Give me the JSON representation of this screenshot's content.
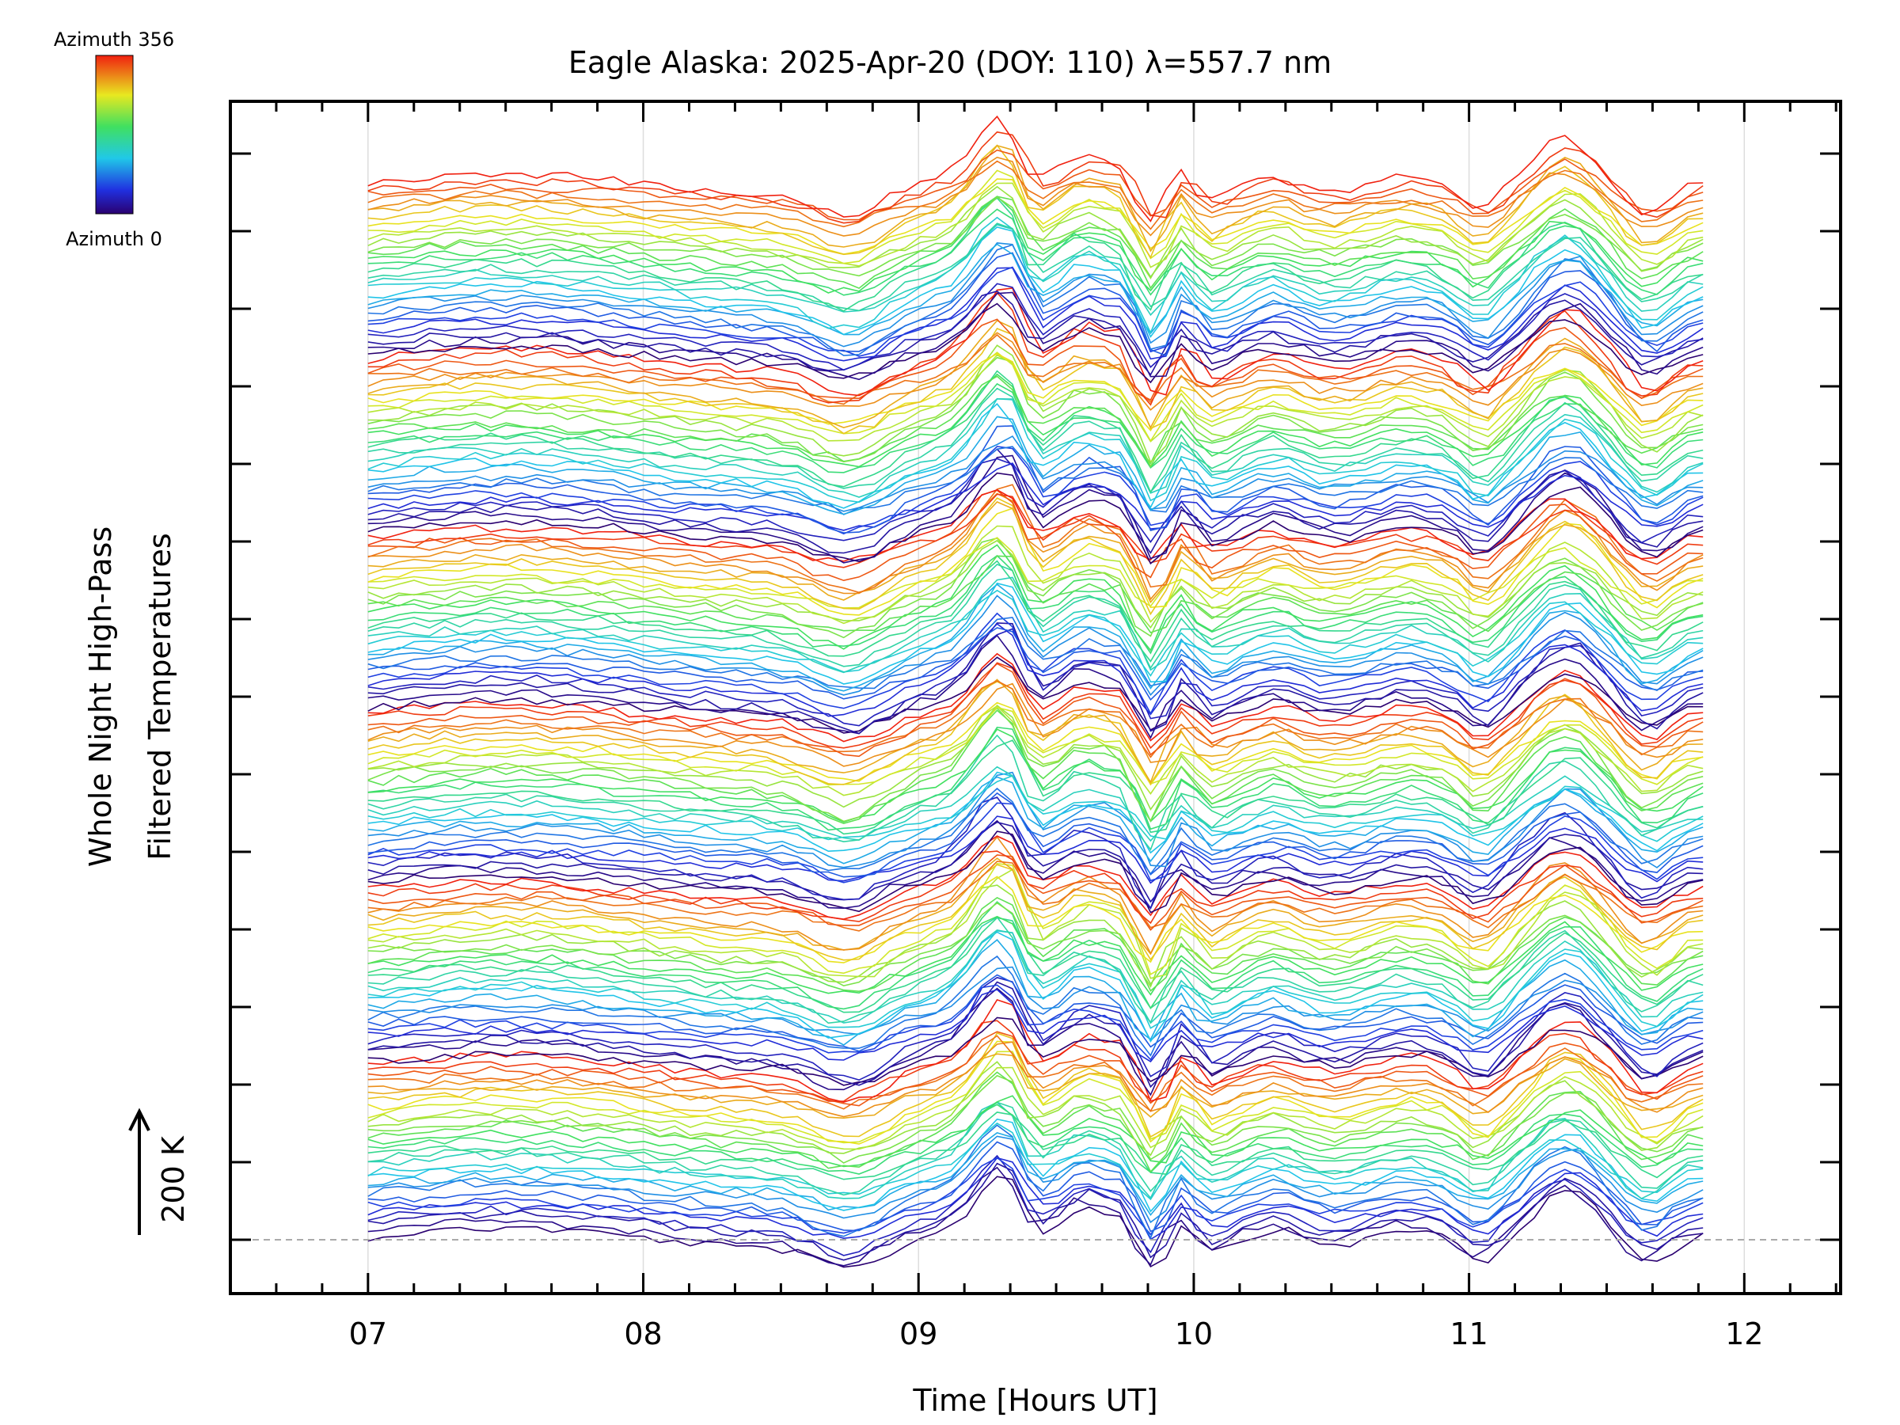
{
  "chart_data": {
    "type": "line",
    "title": "Eagle Alaska: 2025-Apr-20 (DOY: 110) λ=557.7 nm",
    "xlabel": "Time [Hours UT]",
    "ylabel_line1": "Whole Night High-Pass",
    "ylabel_line2": "Filtered Temperatures",
    "scale_label": "200 K",
    "xlim": [
      6.5,
      12.35
    ],
    "x_tick_labels": [
      "07",
      "08",
      "09",
      "10",
      "11",
      "12"
    ],
    "x_tick_values": [
      7,
      8,
      9,
      10,
      11,
      12
    ],
    "x_data_range": [
      7.0,
      11.85
    ],
    "grid": "vertical",
    "colorbar": {
      "top_label": "Azimuth 356",
      "bottom_label": "Azimuth 0",
      "placement": "top-left"
    },
    "series_description": "Stacked azimuth traces of high-pass filtered temperature, colored by azimuth from 0 to 356",
    "stack_count": 180,
    "key_features": [
      {
        "time": 8.75,
        "feature": "dip"
      },
      {
        "time": 9.3,
        "feature": "peak"
      },
      {
        "time": 9.85,
        "feature": "dip"
      },
      {
        "time": 11.05,
        "feature": "dip"
      },
      {
        "time": 11.35,
        "feature": "peak"
      }
    ]
  }
}
